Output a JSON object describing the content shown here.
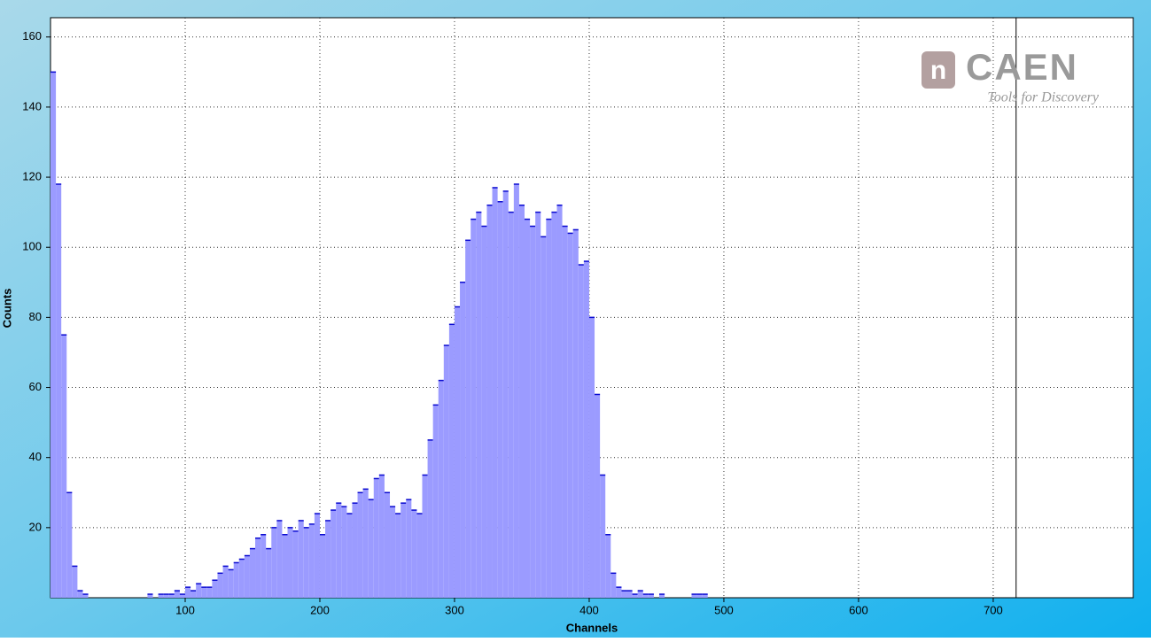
{
  "chart_data": {
    "type": "histogram",
    "xlabel": "Channels",
    "ylabel": "Counts",
    "logo": {
      "name": "CAEN",
      "tagline": "Tools for Discovery"
    },
    "bins": [
      0,
      4,
      8,
      12,
      16,
      20,
      24,
      28,
      32,
      36,
      40,
      44,
      48,
      52,
      56,
      60,
      64,
      68,
      72,
      76,
      80,
      84,
      88,
      92,
      96,
      100,
      104,
      108,
      112,
      116,
      120,
      124,
      128,
      132,
      136,
      140,
      144,
      148,
      152,
      156,
      160,
      164,
      168,
      172,
      176,
      180,
      184,
      188,
      192,
      196,
      200,
      204,
      208,
      212,
      216,
      220,
      224,
      228,
      232,
      236,
      240,
      244,
      248,
      252,
      256,
      260,
      264,
      268,
      272,
      276,
      280,
      284,
      288,
      292,
      296,
      300,
      304,
      308,
      312,
      316,
      320,
      324,
      328,
      332,
      336,
      340,
      344,
      348,
      352,
      356,
      360,
      364,
      368,
      372,
      376,
      380,
      384,
      388,
      392,
      396,
      400,
      404,
      408,
      412,
      416,
      420,
      424,
      428,
      432,
      436,
      440,
      444,
      448,
      452,
      456,
      460,
      464,
      468,
      472,
      476,
      480,
      484,
      488,
      492
    ],
    "values": [
      150,
      118,
      75,
      30,
      9,
      2,
      1,
      0,
      0,
      0,
      0,
      0,
      0,
      0,
      0,
      0,
      0,
      0,
      1,
      0,
      1,
      1,
      1,
      2,
      1,
      3,
      2,
      4,
      3,
      3,
      5,
      7,
      9,
      8,
      10,
      11,
      12,
      14,
      17,
      18,
      14,
      20,
      22,
      18,
      20,
      19,
      22,
      20,
      21,
      24,
      18,
      22,
      25,
      27,
      26,
      24,
      27,
      30,
      31,
      28,
      34,
      35,
      30,
      26,
      24,
      27,
      28,
      25,
      24,
      35,
      45,
      55,
      62,
      72,
      78,
      83,
      90,
      102,
      108,
      110,
      106,
      112,
      117,
      113,
      116,
      110,
      118,
      112,
      108,
      106,
      110,
      103,
      108,
      110,
      112,
      106,
      104,
      105,
      95,
      96,
      80,
      58,
      35,
      18,
      7,
      3,
      2,
      2,
      1,
      2,
      1,
      1,
      0,
      1,
      0,
      0,
      0,
      0,
      0,
      1,
      1,
      1,
      0
    ],
    "color": "#9b9bff",
    "edge_color": "#0a0ad0",
    "xlim": [
      0,
      804
    ],
    "ylim": [
      0,
      165.5
    ],
    "xticks": [
      100,
      200,
      300,
      400,
      500,
      600,
      700
    ],
    "yticks": [
      20,
      40,
      60,
      80,
      100,
      120,
      140,
      160
    ],
    "cursor_x": 717,
    "grid": true
  }
}
